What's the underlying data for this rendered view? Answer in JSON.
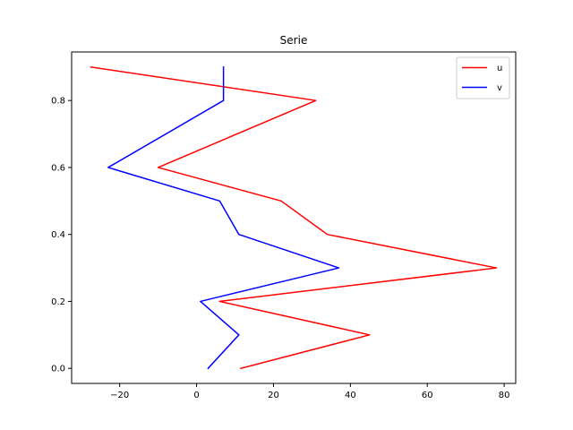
{
  "chart_data": {
    "type": "line",
    "title": "Serie",
    "xlabel": "",
    "ylabel": "",
    "xlim": [
      -32.5,
      83
    ],
    "ylim": [
      -0.045,
      0.945
    ],
    "xticks": [
      -20,
      0,
      20,
      40,
      60,
      80
    ],
    "yticks": [
      0.0,
      0.2,
      0.4,
      0.6,
      0.8
    ],
    "x_tick_labels": [
      "−20",
      "0",
      "20",
      "40",
      "60",
      "80"
    ],
    "y_tick_labels": [
      "0.0",
      "0.2",
      "0.4",
      "0.6",
      "0.8"
    ],
    "grid": false,
    "legend_position": "top-right",
    "series": [
      {
        "name": "u",
        "color": "#ff0000",
        "points": [
          [
            11.5,
            0.0
          ],
          [
            45,
            0.1
          ],
          [
            6,
            0.2
          ],
          [
            78,
            0.3
          ],
          [
            34,
            0.4
          ],
          [
            22,
            0.5
          ],
          [
            -10,
            0.6
          ],
          [
            31,
            0.8
          ],
          [
            -27.5,
            0.9
          ]
        ]
      },
      {
        "name": "v",
        "color": "#0000ff",
        "points": [
          [
            3,
            0.0
          ],
          [
            11,
            0.1
          ],
          [
            1,
            0.2
          ],
          [
            37,
            0.3
          ],
          [
            11,
            0.4
          ],
          [
            6,
            0.5
          ],
          [
            -23,
            0.6
          ],
          [
            7,
            0.8
          ],
          [
            7,
            0.9
          ]
        ]
      }
    ]
  }
}
